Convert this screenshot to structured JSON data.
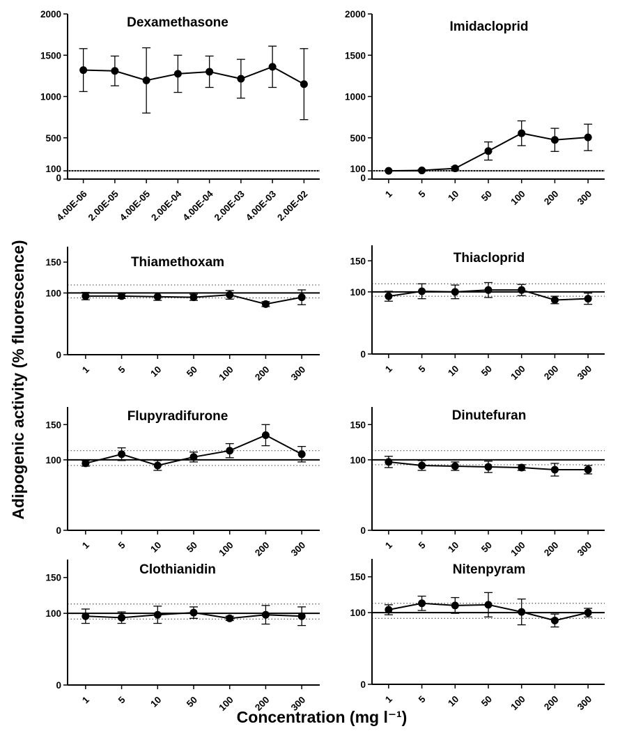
{
  "figure": {
    "ylabel": "Adipogenic activity (% fluorescence)",
    "xlabel": "Concentration (mg l⁻¹)"
  },
  "chart_data": [
    {
      "type": "line",
      "title": "Dexamethasone",
      "categories": [
        "4.00E-06",
        "2.00E-05",
        "4.00E-05",
        "2.00E-04",
        "4.00E-04",
        "2.00E-03",
        "4.00E-03",
        "2.00E-02"
      ],
      "values": [
        1320,
        1310,
        1195,
        1275,
        1300,
        1215,
        1360,
        1150
      ],
      "errors": [
        260,
        180,
        395,
        225,
        190,
        235,
        250,
        430
      ],
      "ylim": [
        0,
        2000
      ],
      "yticks": [
        0,
        100,
        500,
        1000,
        1500,
        2000
      ],
      "baseline": 100,
      "grid": false
    },
    {
      "type": "line",
      "title": "Imidacloprid",
      "categories": [
        "1",
        "5",
        "10",
        "50",
        "100",
        "200",
        "300"
      ],
      "values": [
        100,
        105,
        130,
        340,
        555,
        475,
        505
      ],
      "errors": [
        0,
        10,
        20,
        110,
        150,
        140,
        160
      ],
      "ylim": [
        0,
        2000
      ],
      "yticks": [
        0,
        100,
        500,
        1000,
        1500,
        2000
      ],
      "baseline": 100,
      "grid": false
    },
    {
      "type": "line",
      "title": "Thiamethoxam",
      "categories": [
        "1",
        "5",
        "10",
        "50",
        "100",
        "200",
        "300"
      ],
      "values": [
        95,
        95,
        94,
        93,
        97,
        82,
        93
      ],
      "errors": [
        6,
        4,
        6,
        5,
        7,
        4,
        12
      ],
      "ylim": [
        0,
        175
      ],
      "yticks": [
        0,
        100,
        150
      ],
      "baseline": 100,
      "band": [
        92,
        113
      ],
      "grid": false
    },
    {
      "type": "line",
      "title": "Thiacloprid",
      "categories": [
        "1",
        "5",
        "10",
        "50",
        "100",
        "200",
        "300"
      ],
      "values": [
        93,
        101,
        100,
        103,
        103,
        87,
        89
      ],
      "errors": [
        8,
        12,
        11,
        12,
        9,
        6,
        9
      ],
      "ylim": [
        0,
        175
      ],
      "yticks": [
        0,
        100,
        150
      ],
      "baseline": 100,
      "band": [
        93,
        113
      ],
      "grid": false
    },
    {
      "type": "line",
      "title": "Flupyradifurone",
      "categories": [
        "1",
        "5",
        "10",
        "50",
        "100",
        "200",
        "300"
      ],
      "values": [
        95,
        108,
        92,
        104,
        113,
        135,
        108
      ],
      "errors": [
        4,
        9,
        7,
        7,
        10,
        15,
        11
      ],
      "ylim": [
        0,
        175
      ],
      "yticks": [
        0,
        100,
        150
      ],
      "baseline": 100,
      "band": [
        92,
        113
      ],
      "grid": false
    },
    {
      "type": "line",
      "title": "Dinutefuran",
      "categories": [
        "1",
        "5",
        "10",
        "50",
        "100",
        "200",
        "300"
      ],
      "values": [
        97,
        92,
        91,
        90,
        89,
        86,
        86
      ],
      "errors": [
        8,
        7,
        6,
        8,
        4,
        9,
        6
      ],
      "ylim": [
        0,
        175
      ],
      "yticks": [
        0,
        100,
        150
      ],
      "baseline": 100,
      "band": [
        93,
        113
      ],
      "grid": false
    },
    {
      "type": "line",
      "title": "Clothianidin",
      "categories": [
        "1",
        "5",
        "10",
        "50",
        "100",
        "200",
        "300"
      ],
      "values": [
        96,
        94,
        98,
        101,
        93,
        98,
        96
      ],
      "errors": [
        10,
        8,
        12,
        8,
        3,
        13,
        13
      ],
      "ylim": [
        0,
        175
      ],
      "yticks": [
        0,
        100,
        150
      ],
      "baseline": 100,
      "band": [
        92,
        113
      ],
      "grid": false
    },
    {
      "type": "line",
      "title": "Nitenpyram",
      "categories": [
        "1",
        "5",
        "10",
        "50",
        "100",
        "200",
        "300"
      ],
      "values": [
        104,
        113,
        110,
        111,
        101,
        89,
        100
      ],
      "errors": [
        7,
        10,
        11,
        17,
        18,
        9,
        6
      ],
      "ylim": [
        0,
        175
      ],
      "yticks": [
        0,
        100,
        150
      ],
      "baseline": 100,
      "band": [
        92,
        113
      ],
      "grid": false
    }
  ]
}
